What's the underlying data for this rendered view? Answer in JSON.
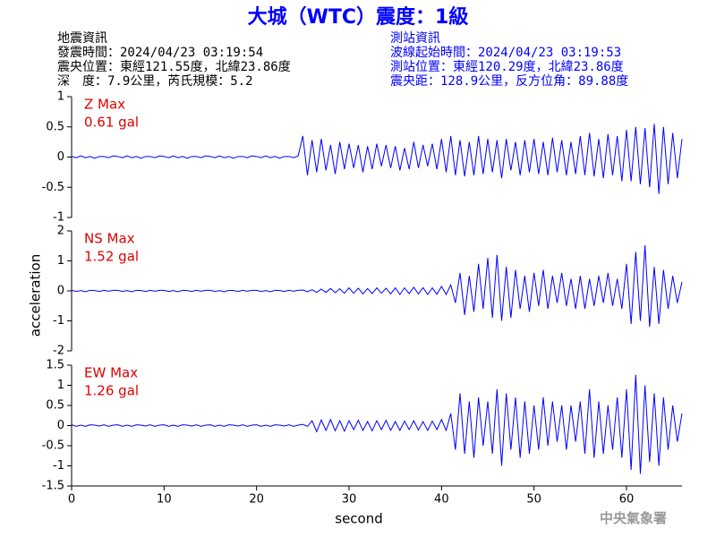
{
  "title": "大城（WTC）震度：1級",
  "header": {
    "left": [
      "地震資訊",
      "發震時間：2024/04/23 03:19:54",
      "震央位置：東經121.55度，北緯23.86度",
      "深　度：7.9公里，芮氏規模：5.2"
    ],
    "right": [
      "測站資訊",
      "波線起始時間：2024/04/23 03:19:53",
      "測站位置：東經120.29度，北緯23.86度",
      "震央距：128.9公里，反方位角：89.88度"
    ]
  },
  "ylabel": "acceleration",
  "footer": "中央氣象署",
  "chart_data": [
    {
      "type": "line",
      "annotations": [
        "Z Max",
        "0.61 gal"
      ],
      "color": "#0000ff",
      "xlim": [
        0,
        66
      ],
      "ylim": [
        -1,
        1
      ],
      "yticks": [
        -1,
        -0.5,
        0,
        0.5,
        1
      ],
      "x": [
        0,
        0.5,
        1,
        1.5,
        2,
        2.5,
        3,
        3.5,
        4,
        4.5,
        5,
        5.5,
        6,
        6.5,
        7,
        7.5,
        8,
        8.5,
        9,
        9.5,
        10,
        10.5,
        11,
        11.5,
        12,
        12.5,
        13,
        13.5,
        14,
        14.5,
        15,
        15.5,
        16,
        16.5,
        17,
        17.5,
        18,
        18.5,
        19,
        19.5,
        20,
        20.5,
        21,
        21.5,
        22,
        22.5,
        23,
        23.5,
        24,
        24.5,
        25,
        25.5,
        26,
        26.5,
        27,
        27.5,
        28,
        28.5,
        29,
        29.5,
        30,
        30.5,
        31,
        31.5,
        32,
        32.5,
        33,
        33.5,
        34,
        34.5,
        35,
        35.5,
        36,
        36.5,
        37,
        37.5,
        38,
        38.5,
        39,
        39.5,
        40,
        40.5,
        41,
        41.5,
        42,
        42.5,
        43,
        43.5,
        44,
        44.5,
        45,
        45.5,
        46,
        46.5,
        47,
        47.5,
        48,
        48.5,
        49,
        49.5,
        50,
        50.5,
        51,
        51.5,
        52,
        52.5,
        53,
        53.5,
        54,
        54.5,
        55,
        55.5,
        56,
        56.5,
        57,
        57.5,
        58,
        58.5,
        59,
        59.5,
        60,
        60.5,
        61,
        61.5,
        62,
        62.5,
        63,
        63.5,
        64,
        64.5,
        65,
        65.5,
        66
      ],
      "values": [
        0.01,
        -0.01,
        0.02,
        -0.01,
        0.01,
        -0.02,
        0.01,
        0.01,
        -0.01,
        0.02,
        0.01,
        -0.01,
        0.02,
        -0.01,
        0.01,
        -0.02,
        0.01,
        0.01,
        -0.01,
        0.02,
        0.01,
        -0.01,
        0.02,
        -0.01,
        0.01,
        -0.02,
        0.01,
        0.01,
        -0.01,
        0.02,
        0.01,
        -0.01,
        0.02,
        -0.01,
        0.01,
        -0.02,
        0.01,
        0.01,
        -0.01,
        0.02,
        0.01,
        -0.01,
        0.02,
        -0.01,
        0.01,
        -0.02,
        0.01,
        0.01,
        -0.01,
        0.02,
        0.35,
        -0.3,
        0.28,
        -0.25,
        0.3,
        -0.22,
        0.2,
        -0.28,
        0.25,
        -0.2,
        0.22,
        -0.18,
        0.2,
        -0.25,
        0.18,
        -0.2,
        0.22,
        -0.15,
        0.2,
        -0.18,
        0.18,
        -0.22,
        0.15,
        -0.2,
        0.25,
        -0.18,
        0.2,
        -0.15,
        0.22,
        -0.2,
        0.3,
        -0.25,
        0.35,
        -0.3,
        0.28,
        -0.32,
        0.25,
        -0.3,
        0.35,
        -0.28,
        0.3,
        -0.25,
        0.28,
        -0.35,
        0.3,
        -0.22,
        0.25,
        -0.3,
        0.28,
        -0.25,
        0.3,
        -0.28,
        0.25,
        -0.3,
        0.32,
        -0.25,
        0.28,
        -0.3,
        0.25,
        -0.28,
        0.35,
        -0.3,
        0.4,
        -0.32,
        0.3,
        -0.35,
        0.38,
        -0.3,
        0.35,
        -0.4,
        0.45,
        -0.4,
        0.5,
        -0.45,
        0.48,
        -0.5,
        0.55,
        -0.61,
        0.5,
        -0.45,
        0.4,
        -0.35,
        0.3
      ]
    },
    {
      "type": "line",
      "annotations": [
        "NS Max",
        "1.52 gal"
      ],
      "color": "#0000ff",
      "xlim": [
        0,
        66
      ],
      "ylim": [
        -2,
        2
      ],
      "yticks": [
        -2,
        -1,
        0,
        1,
        2
      ],
      "x": [
        0,
        0.5,
        1,
        1.5,
        2,
        2.5,
        3,
        3.5,
        4,
        4.5,
        5,
        5.5,
        6,
        6.5,
        7,
        7.5,
        8,
        8.5,
        9,
        9.5,
        10,
        10.5,
        11,
        11.5,
        12,
        12.5,
        13,
        13.5,
        14,
        14.5,
        15,
        15.5,
        16,
        16.5,
        17,
        17.5,
        18,
        18.5,
        19,
        19.5,
        20,
        20.5,
        21,
        21.5,
        22,
        22.5,
        23,
        23.5,
        24,
        24.5,
        25,
        25.5,
        26,
        26.5,
        27,
        27.5,
        28,
        28.5,
        29,
        29.5,
        30,
        30.5,
        31,
        31.5,
        32,
        32.5,
        33,
        33.5,
        34,
        34.5,
        35,
        35.5,
        36,
        36.5,
        37,
        37.5,
        38,
        38.5,
        39,
        39.5,
        40,
        40.5,
        41,
        41.5,
        42,
        42.5,
        43,
        43.5,
        44,
        44.5,
        45,
        45.5,
        46,
        46.5,
        47,
        47.5,
        48,
        48.5,
        49,
        49.5,
        50,
        50.5,
        51,
        51.5,
        52,
        52.5,
        53,
        53.5,
        54,
        54.5,
        55,
        55.5,
        56,
        56.5,
        57,
        57.5,
        58,
        58.5,
        59,
        59.5,
        60,
        60.5,
        61,
        61.5,
        62,
        62.5,
        63,
        63.5,
        64,
        64.5,
        65,
        65.5,
        66
      ],
      "values": [
        0.02,
        -0.02,
        0.01,
        -0.03,
        0.02,
        0.01,
        -0.02,
        0.02,
        -0.01,
        0.02,
        0.02,
        -0.02,
        0.01,
        -0.03,
        0.02,
        0.01,
        -0.02,
        0.02,
        -0.01,
        0.02,
        0.02,
        -0.02,
        0.01,
        -0.03,
        0.02,
        0.01,
        -0.02,
        0.02,
        -0.01,
        0.02,
        0.02,
        -0.02,
        0.01,
        -0.03,
        0.02,
        0.01,
        -0.02,
        0.02,
        -0.01,
        0.02,
        0.02,
        -0.02,
        0.01,
        -0.03,
        0.02,
        0.01,
        -0.02,
        0.02,
        -0.01,
        0.02,
        0.03,
        -0.03,
        0.04,
        -0.05,
        0.06,
        -0.05,
        0.08,
        -0.06,
        0.07,
        -0.08,
        0.1,
        -0.08,
        0.09,
        -0.1,
        0.08,
        -0.09,
        0.1,
        -0.08,
        0.09,
        -0.1,
        0.1,
        -0.12,
        0.1,
        -0.09,
        0.12,
        -0.1,
        0.11,
        -0.12,
        0.1,
        -0.11,
        0.15,
        -0.12,
        0.2,
        -0.4,
        0.6,
        -0.8,
        0.5,
        -0.7,
        0.9,
        -0.6,
        1.1,
        -0.9,
        1.2,
        -1.0,
        0.8,
        -0.9,
        0.7,
        -0.6,
        0.5,
        -0.7,
        0.6,
        -0.5,
        0.7,
        -0.6,
        0.5,
        -0.4,
        0.6,
        -0.5,
        0.4,
        -0.6,
        0.5,
        -0.6,
        0.4,
        -0.5,
        0.5,
        -0.4,
        0.6,
        -0.5,
        0.4,
        -0.6,
        0.9,
        -1.1,
        1.3,
        -1.0,
        1.52,
        -1.2,
        0.8,
        -1.1,
        0.7,
        -0.6,
        0.5,
        -0.4,
        0.3
      ]
    },
    {
      "type": "line",
      "annotations": [
        "EW Max",
        "1.26 gal"
      ],
      "color": "#0000ff",
      "xlim": [
        0,
        66
      ],
      "ylim": [
        -1.5,
        1.5
      ],
      "yticks": [
        -1.5,
        -1,
        -0.5,
        0,
        0.5,
        1,
        1.5
      ],
      "xticks": [
        0,
        10,
        20,
        30,
        40,
        50,
        60
      ],
      "xlabel": "second",
      "x": [
        0,
        0.5,
        1,
        1.5,
        2,
        2.5,
        3,
        3.5,
        4,
        4.5,
        5,
        5.5,
        6,
        6.5,
        7,
        7.5,
        8,
        8.5,
        9,
        9.5,
        10,
        10.5,
        11,
        11.5,
        12,
        12.5,
        13,
        13.5,
        14,
        14.5,
        15,
        15.5,
        16,
        16.5,
        17,
        17.5,
        18,
        18.5,
        19,
        19.5,
        20,
        20.5,
        21,
        21.5,
        22,
        22.5,
        23,
        23.5,
        24,
        24.5,
        25,
        25.5,
        26,
        26.5,
        27,
        27.5,
        28,
        28.5,
        29,
        29.5,
        30,
        30.5,
        31,
        31.5,
        32,
        32.5,
        33,
        33.5,
        34,
        34.5,
        35,
        35.5,
        36,
        36.5,
        37,
        37.5,
        38,
        38.5,
        39,
        39.5,
        40,
        40.5,
        41,
        41.5,
        42,
        42.5,
        43,
        43.5,
        44,
        44.5,
        45,
        45.5,
        46,
        46.5,
        47,
        47.5,
        48,
        48.5,
        49,
        49.5,
        50,
        50.5,
        51,
        51.5,
        52,
        52.5,
        53,
        53.5,
        54,
        54.5,
        55,
        55.5,
        56,
        56.5,
        57,
        57.5,
        58,
        58.5,
        59,
        59.5,
        60,
        60.5,
        61,
        61.5,
        62,
        62.5,
        63,
        63.5,
        64,
        64.5,
        65,
        65.5,
        66
      ],
      "values": [
        0.02,
        -0.02,
        0.01,
        -0.02,
        0.02,
        0.01,
        -0.01,
        0.02,
        -0.02,
        0.01,
        0.02,
        -0.02,
        0.01,
        -0.02,
        0.02,
        0.01,
        -0.01,
        0.02,
        -0.02,
        0.01,
        0.02,
        -0.02,
        0.01,
        -0.02,
        0.02,
        0.01,
        -0.01,
        0.02,
        -0.02,
        0.01,
        0.02,
        -0.02,
        0.01,
        -0.02,
        0.02,
        0.01,
        -0.01,
        0.02,
        -0.02,
        0.01,
        0.02,
        -0.02,
        0.01,
        -0.02,
        0.02,
        0.01,
        -0.01,
        0.02,
        -0.02,
        0.01,
        0.03,
        -0.02,
        0.12,
        -0.15,
        0.14,
        -0.12,
        0.15,
        -0.13,
        0.12,
        -0.14,
        0.12,
        -0.1,
        0.13,
        -0.12,
        0.1,
        -0.13,
        0.12,
        -0.1,
        0.13,
        -0.12,
        0.1,
        -0.12,
        0.11,
        -0.1,
        0.12,
        -0.11,
        0.1,
        -0.12,
        0.11,
        -0.1,
        0.15,
        -0.12,
        0.3,
        -0.6,
        0.8,
        -0.7,
        0.6,
        -0.8,
        0.7,
        -0.5,
        0.6,
        -0.7,
        0.9,
        -1.0,
        0.8,
        -0.6,
        0.7,
        -0.8,
        0.6,
        -0.7,
        0.5,
        -0.6,
        0.7,
        -0.5,
        0.6,
        -0.4,
        0.5,
        -0.6,
        0.5,
        -0.4,
        0.6,
        -0.7,
        0.9,
        -0.8,
        0.6,
        -0.7,
        0.5,
        -0.6,
        0.7,
        -0.8,
        0.9,
        -1.1,
        1.26,
        -1.2,
        1.0,
        -0.9,
        0.8,
        -1.0,
        0.7,
        -0.6,
        0.5,
        -0.4,
        0.3
      ]
    }
  ]
}
